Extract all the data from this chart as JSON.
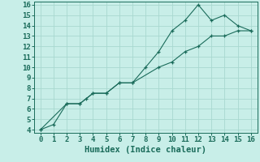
{
  "line1_x": [
    0,
    1,
    2,
    3,
    3.5,
    4,
    5,
    6,
    7,
    8,
    9,
    10,
    11,
    12,
    13,
    14,
    15,
    16
  ],
  "line1_y": [
    4,
    4.5,
    6.5,
    6.5,
    7,
    7.5,
    7.5,
    8.5,
    8.5,
    10,
    11.5,
    13.5,
    14.5,
    16,
    14.5,
    15,
    14,
    13.5
  ],
  "line2_x": [
    0,
    2,
    3,
    4,
    5,
    6,
    7,
    9,
    10,
    11,
    12,
    13,
    14,
    15,
    16
  ],
  "line2_y": [
    4,
    6.5,
    6.5,
    7.5,
    7.5,
    8.5,
    8.5,
    10,
    10.5,
    11.5,
    12,
    13,
    13,
    13.5,
    13.5
  ],
  "line_color": "#1a6b5a",
  "bg_color": "#c8eee8",
  "grid_color": "#a8d8d0",
  "xlabel": "Humidex (Indice chaleur)",
  "xlim": [
    -0.5,
    16.5
  ],
  "ylim": [
    3.7,
    16.3
  ],
  "xticks": [
    0,
    1,
    2,
    3,
    4,
    5,
    6,
    7,
    8,
    9,
    10,
    11,
    12,
    13,
    14,
    15,
    16
  ],
  "yticks": [
    4,
    5,
    6,
    7,
    8,
    9,
    10,
    11,
    12,
    13,
    14,
    15,
    16
  ],
  "marker": "+",
  "xlabel_fontsize": 7.5,
  "tick_fontsize": 6.5
}
